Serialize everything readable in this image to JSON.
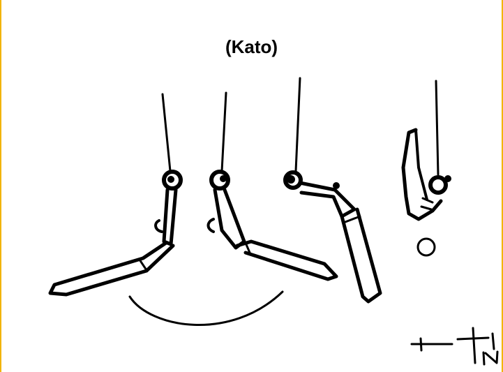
{
  "title": "(Kato)",
  "colors": {
    "frame_edge": "#f2b400",
    "ink": "#000000",
    "background": "#ffffff"
  },
  "figures": [
    {
      "name": "figure-1",
      "stage": "hang-leg-forward-left"
    },
    {
      "name": "figure-2",
      "stage": "hang-leg-forward-right"
    },
    {
      "name": "figure-3",
      "stage": "leg-swing-down"
    },
    {
      "name": "figure-4",
      "stage": "regrasp-sideways"
    }
  ],
  "symbols": [
    "rotation-arc",
    "ball-marker",
    "bar-signature"
  ]
}
